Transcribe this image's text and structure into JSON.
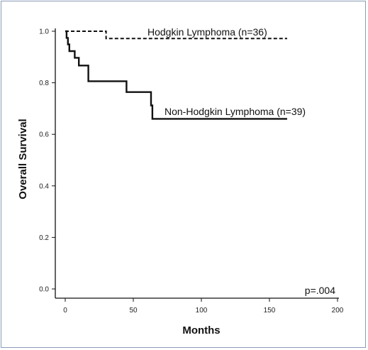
{
  "chart_data": {
    "type": "line",
    "title": "",
    "xlabel": "Months",
    "ylabel": "Overall Survival",
    "xlim": [
      0,
      200
    ],
    "ylim": [
      0,
      1.0
    ],
    "x_ticks": [
      "0",
      "50",
      "100",
      "150",
      "200"
    ],
    "y_ticks": [
      "0.0",
      "0.2",
      "0.4",
      "0.6",
      "0.8",
      "1.0"
    ],
    "grid": false,
    "series": [
      {
        "name": "Hodgkin Lymphoma (n=36)",
        "line_style": "dashed",
        "x": [
          0,
          30,
          30,
          163
        ],
        "y": [
          1.0,
          1.0,
          0.972,
          0.972
        ]
      },
      {
        "name": "Non-Hodgkin Lymphoma (n=39)",
        "line_style": "solid",
        "x": [
          0,
          1,
          1,
          2,
          2,
          3,
          3,
          7,
          7,
          10,
          10,
          17,
          17,
          45,
          45,
          63,
          63,
          64,
          64,
          163
        ],
        "y": [
          1.0,
          1.0,
          0.974,
          0.974,
          0.949,
          0.949,
          0.923,
          0.923,
          0.897,
          0.897,
          0.867,
          0.867,
          0.806,
          0.806,
          0.764,
          0.764,
          0.712,
          0.712,
          0.66,
          0.66
        ]
      }
    ],
    "annotations": {
      "p_value": "p=.004"
    },
    "colors": {
      "line": "#111111",
      "frame": "#8a9bb5"
    }
  }
}
